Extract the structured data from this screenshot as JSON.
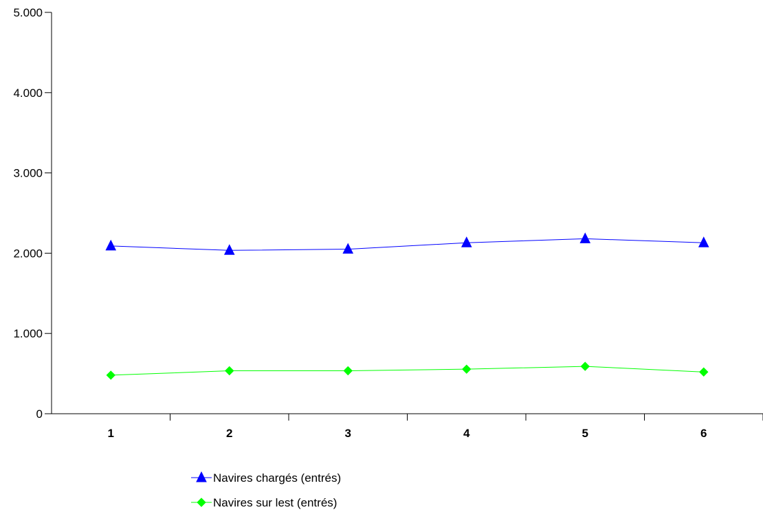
{
  "chart_data": {
    "type": "line",
    "title": "",
    "xlabel": "",
    "ylabel": "",
    "categories": [
      "1",
      "2",
      "3",
      "4",
      "5",
      "6"
    ],
    "ylim": [
      0,
      5000
    ],
    "yticks": [
      0,
      1000,
      2000,
      3000,
      4000,
      5000
    ],
    "ytick_labels": [
      "0",
      "1.000",
      "2.000",
      "3.000",
      "4.000",
      "5.000"
    ],
    "grid": false,
    "legend_position": "bottom",
    "series": [
      {
        "name": "Navires chargés (entrés)",
        "values": [
          2090,
          2035,
          2050,
          2130,
          2180,
          2130
        ],
        "color": "#0000ff",
        "marker": "triangle"
      },
      {
        "name": "Navires sur lest (entrés)",
        "values": [
          480,
          535,
          535,
          555,
          590,
          520
        ],
        "color": "#00ff00",
        "marker": "diamond"
      }
    ]
  }
}
